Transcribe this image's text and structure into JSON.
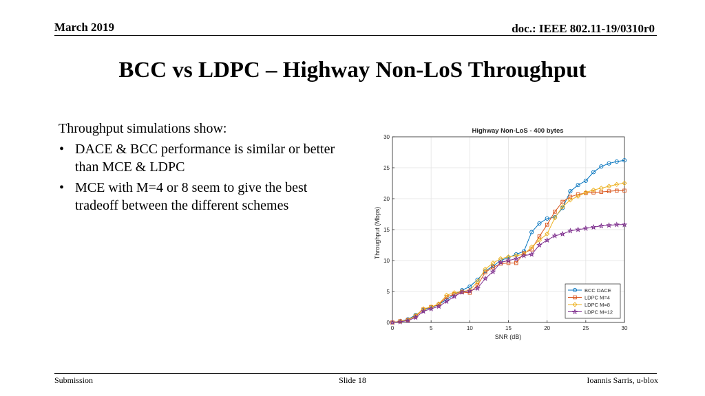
{
  "header": {
    "date": "March 2019",
    "doc_id": "doc.: IEEE 802.11-19/0310r0"
  },
  "title": "BCC vs LDPC – Highway Non-LoS Throughput",
  "body": {
    "intro": "Throughput simulations show:",
    "bullets": [
      "DACE & BCC performance is similar or better than MCE & LDPC",
      "MCE with M=4 or 8 seem to give the best tradeoff between the different schemes"
    ]
  },
  "footer": {
    "left": "Submission",
    "center": "Slide 18",
    "right": "Ioannis Sarris, u-blox"
  },
  "chart_data": {
    "type": "line",
    "title": "Highway Non-LoS - 400 bytes",
    "xlabel": "SNR (dB)",
    "ylabel": "Throughput (Mbps)",
    "xlim": [
      0,
      30
    ],
    "ylim": [
      0,
      30
    ],
    "x_ticks": [
      0,
      5,
      10,
      15,
      20,
      25,
      30
    ],
    "y_ticks": [
      0,
      5,
      10,
      15,
      20,
      25,
      30
    ],
    "grid": true,
    "legend_position": "bottom-right",
    "x": [
      0,
      1,
      2,
      3,
      4,
      5,
      6,
      7,
      8,
      9,
      10,
      11,
      12,
      13,
      14,
      15,
      16,
      17,
      18,
      19,
      20,
      21,
      22,
      23,
      24,
      25,
      26,
      27,
      28,
      29,
      30
    ],
    "series": [
      {
        "name": "BCC DACE",
        "color": "#0072BD",
        "marker": "circle",
        "values": [
          0,
          0.2,
          0.5,
          1.2,
          2.0,
          2.4,
          2.9,
          3.7,
          4.5,
          5.2,
          5.8,
          6.9,
          8.3,
          9.1,
          10.0,
          10.5,
          11.0,
          11.5,
          14.6,
          16.0,
          16.8,
          17.0,
          18.5,
          21.2,
          22.2,
          22.9,
          24.3,
          25.2,
          25.7,
          26.0,
          26.2
        ]
      },
      {
        "name": "LDPC M=4",
        "color": "#D95319",
        "marker": "square",
        "values": [
          0,
          0.2,
          0.4,
          1.0,
          2.1,
          2.5,
          2.9,
          4.1,
          4.6,
          4.9,
          4.8,
          6.0,
          8.1,
          8.9,
          9.5,
          9.6,
          9.6,
          11.2,
          11.8,
          13.9,
          15.8,
          17.9,
          19.5,
          20.3,
          20.7,
          20.9,
          21.0,
          21.1,
          21.2,
          21.3,
          21.3
        ]
      },
      {
        "name": "LDPC M=8",
        "color": "#EDB120",
        "marker": "diamond",
        "values": [
          0,
          0.2,
          0.4,
          1.1,
          2.2,
          2.5,
          3.0,
          4.4,
          4.8,
          5.0,
          5.2,
          6.6,
          8.6,
          9.6,
          10.3,
          10.6,
          10.8,
          11.0,
          12.2,
          13.3,
          14.3,
          16.9,
          18.7,
          19.8,
          20.4,
          21.0,
          21.4,
          21.7,
          22.0,
          22.3,
          22.5
        ]
      },
      {
        "name": "LDPC M=12",
        "color": "#7E2F8E",
        "marker": "star",
        "values": [
          0,
          0.1,
          0.3,
          0.8,
          1.8,
          2.2,
          2.6,
          3.4,
          4.2,
          4.9,
          5.1,
          5.5,
          7.1,
          8.2,
          9.7,
          10.0,
          10.3,
          10.8,
          11.0,
          12.5,
          13.3,
          14.0,
          14.3,
          14.8,
          15.0,
          15.2,
          15.4,
          15.6,
          15.7,
          15.8,
          15.8
        ]
      }
    ]
  }
}
